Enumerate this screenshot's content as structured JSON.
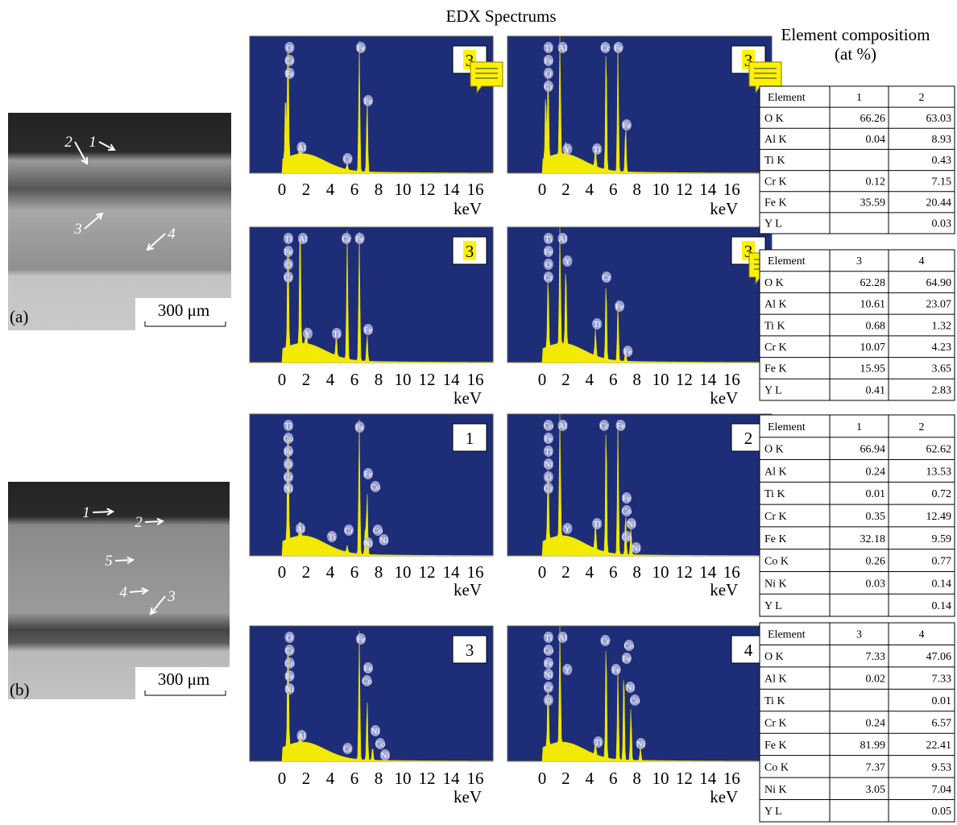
{
  "title": "EDX Spectrums",
  "composition_title": "Element compositiom",
  "composition_unit": "(at %)",
  "micrographs": [
    {
      "panel_label": "(a)",
      "scale_bar": "300 μm",
      "markers": [
        "2",
        "1",
        "3",
        "4"
      ]
    },
    {
      "panel_label": "(b)",
      "scale_bar": "300 μm",
      "markers": [
        "1",
        "2",
        "5",
        "4",
        "3"
      ]
    }
  ],
  "spectrum_axis": {
    "ticks": [
      "0",
      "2",
      "4",
      "6",
      "8",
      "10",
      "12",
      "14",
      "16"
    ],
    "unit": "keV"
  },
  "spectra": [
    {
      "id": "3",
      "peak_labels": [
        "O",
        "Cr",
        "Fe",
        "Fe",
        "Fe",
        "Al",
        "Cr"
      ]
    },
    {
      "id": "3",
      "peak_labels": [
        "Ti",
        "Al",
        "Fe",
        "O",
        "Cr",
        "Cr",
        "Fe",
        "Fe",
        "Y",
        "Ti"
      ]
    },
    {
      "id": "3",
      "peak_labels": [
        "Ti",
        "Al",
        "Fe",
        "O",
        "Cr",
        "Cr",
        "Fe",
        "Y",
        "Ti",
        "Fe"
      ]
    },
    {
      "id": "3",
      "peak_labels": [
        "Ti",
        "Al",
        "Fe",
        "O",
        "Cr",
        "Y",
        "Cr",
        "Fe",
        "Ti",
        "Fe"
      ]
    },
    {
      "id": "1",
      "peak_labels": [
        "Ti",
        "Co",
        "Fe",
        "O",
        "Cr",
        "Ni",
        "Fe",
        "Fe",
        "Co",
        "Al",
        "Ti",
        "Cr",
        "Co",
        "Ni",
        "Ni"
      ]
    },
    {
      "id": "2",
      "peak_labels": [
        "Co",
        "Al",
        "Fe",
        "Ti",
        "Ni",
        "O",
        "Cr",
        "Cr",
        "Fe",
        "Fe",
        "Co",
        "Ni",
        "Co",
        "Ni",
        "Y",
        "Ti"
      ]
    },
    {
      "id": "3",
      "peak_labels": [
        "O",
        "Cr",
        "Co",
        "Fe",
        "Ni",
        "Fe",
        "Fe",
        "Co",
        "Al",
        "Cr",
        "Ni",
        "Co",
        "Ni"
      ]
    },
    {
      "id": "4",
      "peak_labels": [
        "Ti",
        "Al",
        "Co",
        "Fe",
        "Ni",
        "Y",
        "Cr",
        "O",
        "Cr",
        "Co",
        "Fe",
        "Fe",
        "Ni",
        "Co",
        "Ti",
        "Ni"
      ]
    }
  ],
  "tables": [
    {
      "columns": [
        "Element",
        "1",
        "2"
      ],
      "rows": [
        [
          "O K",
          "66.26",
          "63.03"
        ],
        [
          "Al K",
          "0.04",
          "8.93"
        ],
        [
          "Ti K",
          null,
          "0.43"
        ],
        [
          "Cr K",
          "0.12",
          "7.15"
        ],
        [
          "Fe K",
          "35.59",
          "20.44"
        ],
        [
          "Y L",
          null,
          "0.03"
        ]
      ]
    },
    {
      "columns": [
        "Element",
        "3",
        "4"
      ],
      "rows": [
        [
          "O K",
          "62.28",
          "64.90"
        ],
        [
          "Al K",
          "10.61",
          "23.07"
        ],
        [
          "Ti K",
          "0.68",
          "1.32"
        ],
        [
          "Cr K",
          "10.07",
          "4.23"
        ],
        [
          "Fe K",
          "15.95",
          "3.65"
        ],
        [
          "Y L",
          "0.41",
          "2.83"
        ]
      ]
    },
    {
      "columns": [
        "Element",
        "1",
        "2"
      ],
      "rows": [
        [
          "O K",
          "66.94",
          "62.62"
        ],
        [
          "Al K",
          "0.24",
          "13.53"
        ],
        [
          "Ti K",
          "0.01",
          "0.72"
        ],
        [
          "Cr K",
          "0.35",
          "12.49"
        ],
        [
          "Fe K",
          "32.18",
          "9.59"
        ],
        [
          "Co K",
          "0.26",
          "0.77"
        ],
        [
          "Ni K",
          "0.03",
          "0.14"
        ],
        [
          "Y L",
          null,
          "0.14"
        ]
      ]
    },
    {
      "columns": [
        "Element",
        "3",
        "4"
      ],
      "rows": [
        [
          "O K",
          "7.33",
          "47.06"
        ],
        [
          "Al K",
          "0.02",
          "7.33"
        ],
        [
          "Ti K",
          null,
          "0.01"
        ],
        [
          "Cr K",
          "0.24",
          "6.57"
        ],
        [
          "Fe K",
          "81.99",
          "22.41"
        ],
        [
          "Co K",
          "7.37",
          "9.53"
        ],
        [
          "Ni K",
          "3.05",
          "7.04"
        ],
        [
          "Y L",
          null,
          "0.05"
        ]
      ]
    }
  ]
}
